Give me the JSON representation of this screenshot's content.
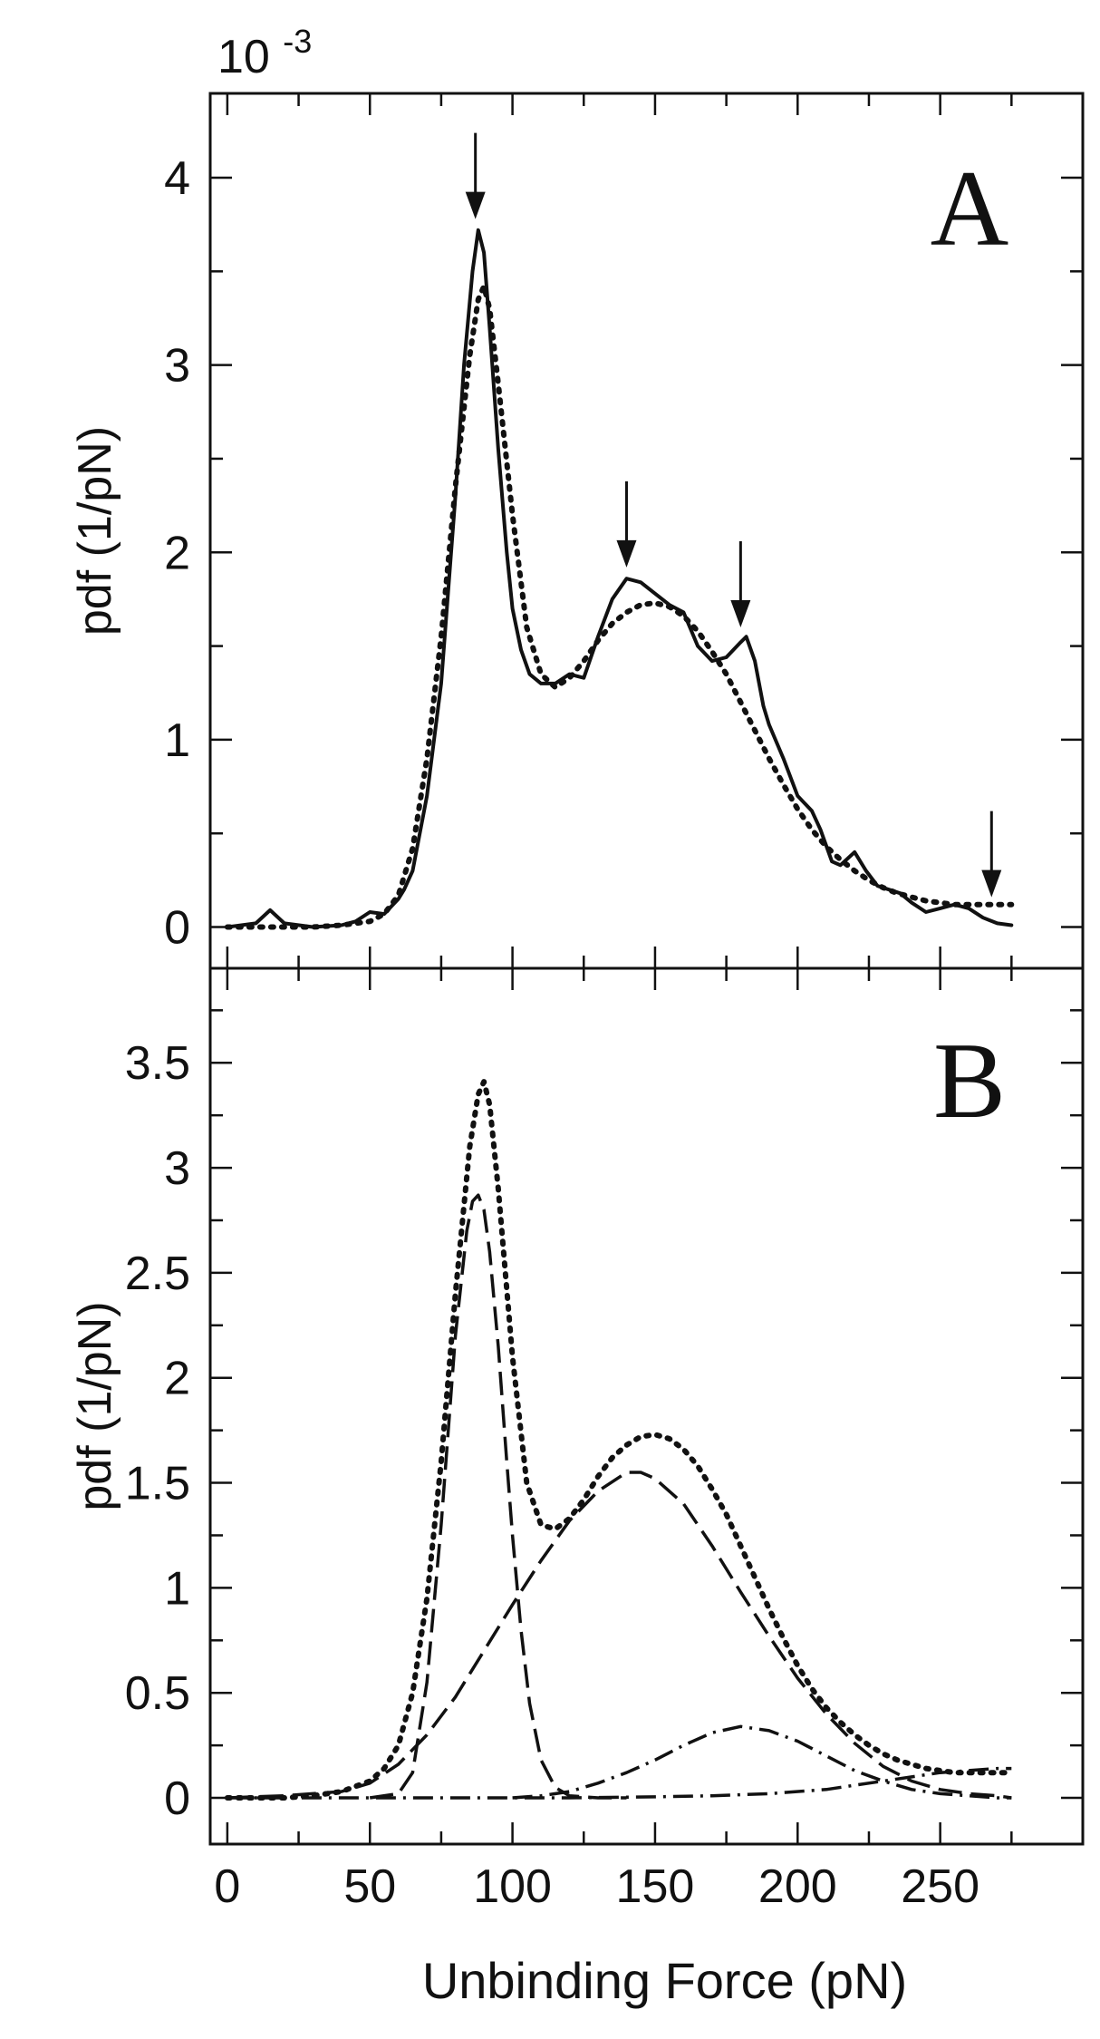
{
  "chart_data": [
    {
      "panel": "A",
      "type": "line",
      "panel_label": "A",
      "multiplier_label": "10",
      "multiplier_exponent": "-3",
      "ylabel": "pdf (1/pN)",
      "xlabel": "",
      "xlim": [
        -6,
        300
      ],
      "ylim": [
        -0.22,
        4.45
      ],
      "yticks": [
        0,
        1,
        2,
        3,
        4
      ],
      "ytick_labels": [
        "0",
        "1",
        "2",
        "3",
        "4"
      ],
      "xticks": [
        0,
        50,
        100,
        150,
        200,
        250
      ],
      "series": [
        {
          "style": "solid",
          "x": [
            0,
            10,
            15,
            20,
            30,
            40,
            45,
            50,
            55,
            60,
            62,
            65,
            70,
            75,
            80,
            83,
            86,
            88,
            90,
            92,
            95,
            98,
            100,
            103,
            106,
            110,
            115,
            120,
            125,
            130,
            135,
            140,
            145,
            150,
            155,
            160,
            165,
            170,
            175,
            180,
            182,
            185,
            188,
            190,
            195,
            200,
            205,
            208,
            212,
            215,
            220,
            224,
            228,
            232,
            236,
            240,
            245,
            250,
            255,
            260,
            265,
            270,
            275
          ],
          "values": [
            0,
            0.02,
            0.09,
            0.02,
            0,
            0.01,
            0.03,
            0.08,
            0.07,
            0.15,
            0.2,
            0.3,
            0.7,
            1.3,
            2.3,
            3.0,
            3.5,
            3.72,
            3.6,
            3.2,
            2.55,
            2.0,
            1.7,
            1.48,
            1.35,
            1.3,
            1.3,
            1.35,
            1.33,
            1.55,
            1.75,
            1.86,
            1.84,
            1.78,
            1.72,
            1.68,
            1.5,
            1.42,
            1.44,
            1.52,
            1.55,
            1.42,
            1.18,
            1.08,
            0.9,
            0.7,
            0.62,
            0.52,
            0.35,
            0.33,
            0.4,
            0.3,
            0.22,
            0.2,
            0.18,
            0.13,
            0.08,
            0.1,
            0.12,
            0.1,
            0.05,
            0.02,
            0.01
          ]
        },
        {
          "style": "dotted",
          "x": [
            0,
            10,
            20,
            30,
            40,
            50,
            55,
            60,
            65,
            70,
            75,
            80,
            85,
            88,
            90,
            92,
            95,
            100,
            105,
            110,
            115,
            120,
            125,
            130,
            135,
            140,
            145,
            150,
            155,
            160,
            165,
            170,
            175,
            180,
            185,
            190,
            195,
            200,
            205,
            210,
            215,
            220,
            225,
            230,
            235,
            240,
            245,
            250,
            255,
            260,
            265,
            270,
            275
          ],
          "values": [
            0,
            0,
            0,
            0,
            0.01,
            0.03,
            0.07,
            0.17,
            0.42,
            0.9,
            1.55,
            2.35,
            3.05,
            3.35,
            3.42,
            3.3,
            2.9,
            2.2,
            1.6,
            1.35,
            1.28,
            1.33,
            1.42,
            1.53,
            1.62,
            1.68,
            1.72,
            1.73,
            1.71,
            1.66,
            1.58,
            1.47,
            1.35,
            1.2,
            1.05,
            0.9,
            0.76,
            0.63,
            0.52,
            0.43,
            0.36,
            0.3,
            0.25,
            0.21,
            0.18,
            0.16,
            0.14,
            0.13,
            0.12,
            0.12,
            0.12,
            0.12,
            0.12
          ]
        }
      ],
      "arrows": [
        {
          "x": 87,
          "y": 3.76
        },
        {
          "x": 140,
          "y": 1.9
        },
        {
          "x": 180,
          "y": 1.58
        },
        {
          "x": 268,
          "y": 0.14
        }
      ]
    },
    {
      "panel": "B",
      "type": "line",
      "panel_label": "B",
      "ylabel": "pdf (1/pN)",
      "xlabel": "Unbinding Force (pN)",
      "xlim": [
        -6,
        300
      ],
      "ylim": [
        -0.22,
        3.95
      ],
      "yticks": [
        0,
        0.5,
        1,
        1.5,
        2,
        2.5,
        3,
        3.5
      ],
      "ytick_labels": [
        "0",
        "0.5",
        "1",
        "1.5",
        "2",
        "2.5",
        "3",
        "3.5"
      ],
      "xticks": [
        0,
        50,
        100,
        150,
        200,
        250
      ],
      "xtick_labels": [
        "0",
        "50",
        "100",
        "150",
        "200",
        "250"
      ],
      "series": [
        {
          "style": "dotted",
          "x": [
            0,
            10,
            20,
            30,
            40,
            50,
            55,
            60,
            65,
            70,
            75,
            80,
            85,
            88,
            90,
            92,
            95,
            100,
            105,
            110,
            115,
            120,
            125,
            130,
            135,
            140,
            145,
            150,
            155,
            160,
            165,
            170,
            175,
            180,
            185,
            190,
            195,
            200,
            205,
            210,
            215,
            220,
            225,
            230,
            235,
            240,
            245,
            250,
            255,
            260,
            265,
            270,
            275
          ],
          "values": [
            0,
            0,
            0,
            0.01,
            0.03,
            0.08,
            0.14,
            0.25,
            0.5,
            0.95,
            1.6,
            2.4,
            3.1,
            3.35,
            3.41,
            3.3,
            2.9,
            2.1,
            1.5,
            1.3,
            1.28,
            1.33,
            1.42,
            1.53,
            1.62,
            1.68,
            1.72,
            1.73,
            1.71,
            1.66,
            1.58,
            1.47,
            1.35,
            1.2,
            1.05,
            0.9,
            0.76,
            0.63,
            0.52,
            0.43,
            0.36,
            0.3,
            0.25,
            0.21,
            0.18,
            0.16,
            0.14,
            0.13,
            0.12,
            0.12,
            0.12,
            0.12,
            0.12
          ]
        },
        {
          "style": "long-dash",
          "x": [
            50,
            60,
            65,
            70,
            75,
            80,
            84,
            86,
            88,
            90,
            92,
            95,
            98,
            100,
            103,
            106,
            110,
            115,
            120,
            130,
            140
          ],
          "values": [
            0,
            0.02,
            0.12,
            0.55,
            1.3,
            2.2,
            2.7,
            2.84,
            2.87,
            2.8,
            2.6,
            2.15,
            1.6,
            1.25,
            0.8,
            0.45,
            0.18,
            0.05,
            0.01,
            0,
            0
          ]
        },
        {
          "style": "long-dash",
          "x": [
            0,
            20,
            40,
            50,
            60,
            70,
            80,
            90,
            100,
            110,
            120,
            130,
            140,
            145,
            150,
            160,
            170,
            180,
            190,
            200,
            210,
            220,
            230,
            240,
            250,
            260,
            270,
            275
          ],
          "values": [
            0,
            0.01,
            0.03,
            0.07,
            0.16,
            0.3,
            0.48,
            0.7,
            0.92,
            1.13,
            1.32,
            1.46,
            1.55,
            1.55,
            1.52,
            1.4,
            1.2,
            0.98,
            0.77,
            0.57,
            0.4,
            0.26,
            0.15,
            0.08,
            0.04,
            0.02,
            0.01,
            0
          ]
        },
        {
          "style": "dash-dot",
          "x": [
            100,
            110,
            120,
            130,
            140,
            150,
            160,
            170,
            180,
            190,
            200,
            210,
            220,
            230,
            240,
            250,
            260,
            270,
            275
          ],
          "values": [
            0,
            0.01,
            0.03,
            0.07,
            0.12,
            0.18,
            0.25,
            0.31,
            0.34,
            0.32,
            0.27,
            0.2,
            0.13,
            0.08,
            0.04,
            0.02,
            0.01,
            0,
            0
          ]
        },
        {
          "style": "dash-dot",
          "x": [
            0,
            120,
            150,
            170,
            190,
            210,
            220,
            230,
            240,
            250,
            260,
            270,
            275
          ],
          "values": [
            0,
            0,
            0.005,
            0.01,
            0.02,
            0.04,
            0.06,
            0.08,
            0.1,
            0.12,
            0.13,
            0.14,
            0.14
          ]
        }
      ]
    }
  ]
}
